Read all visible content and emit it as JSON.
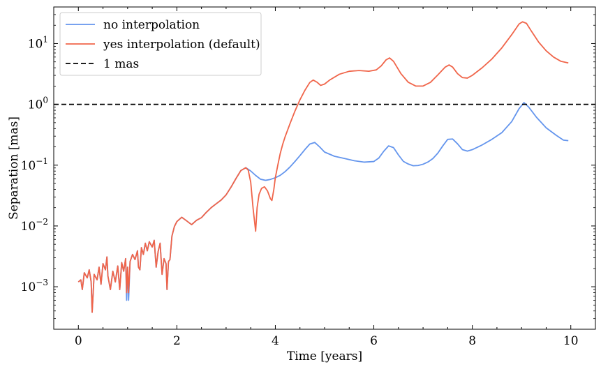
{
  "chart_data": {
    "type": "line",
    "title": "",
    "xlabel": "Time [years]",
    "ylabel": "Separation [mas]",
    "xlim": [
      -0.5,
      10.5
    ],
    "ylim": [
      0.0002,
      40
    ],
    "yscale": "log",
    "grid": false,
    "legend_position": "top-left",
    "x_ticks": [
      {
        "value": 0,
        "label": "0"
      },
      {
        "value": 2,
        "label": "2"
      },
      {
        "value": 4,
        "label": "4"
      },
      {
        "value": 6,
        "label": "6"
      },
      {
        "value": 8,
        "label": "8"
      },
      {
        "value": 10,
        "label": "10"
      }
    ],
    "y_ticks": [
      {
        "value": 0.001,
        "base": "10",
        "exp": "−3"
      },
      {
        "value": 0.01,
        "base": "10",
        "exp": "−2"
      },
      {
        "value": 0.1,
        "base": "10",
        "exp": "−1"
      },
      {
        "value": 1,
        "base": "10",
        "exp": "0"
      },
      {
        "value": 10,
        "base": "10",
        "exp": "1"
      }
    ],
    "series": [
      {
        "name": "no interpolation",
        "color": "#6495ED",
        "style": "solid",
        "points": [
          [
            0.0,
            0.0012
          ],
          [
            0.05,
            0.0013
          ],
          [
            0.08,
            0.0009
          ],
          [
            0.12,
            0.0017
          ],
          [
            0.18,
            0.0014
          ],
          [
            0.22,
            0.0019
          ],
          [
            0.26,
            0.0012
          ],
          [
            0.28,
            0.00038
          ],
          [
            0.32,
            0.0016
          ],
          [
            0.38,
            0.0013
          ],
          [
            0.42,
            0.0021
          ],
          [
            0.46,
            0.0011
          ],
          [
            0.5,
            0.0024
          ],
          [
            0.55,
            0.0019
          ],
          [
            0.58,
            0.0031
          ],
          [
            0.6,
            0.0015
          ],
          [
            0.65,
            0.0009
          ],
          [
            0.7,
            0.0018
          ],
          [
            0.75,
            0.0012
          ],
          [
            0.8,
            0.0022
          ],
          [
            0.84,
            0.0009
          ],
          [
            0.88,
            0.0025
          ],
          [
            0.92,
            0.0018
          ],
          [
            0.96,
            0.0029
          ],
          [
            0.98,
            0.0006
          ],
          [
            1.0,
            0.0021
          ],
          [
            1.02,
            0.0006
          ],
          [
            1.05,
            0.0026
          ],
          [
            1.1,
            0.0034
          ],
          [
            1.15,
            0.0028
          ],
          [
            1.2,
            0.0039
          ],
          [
            1.22,
            0.0021
          ],
          [
            1.25,
            0.0019
          ],
          [
            1.28,
            0.0044
          ],
          [
            1.32,
            0.0034
          ],
          [
            1.36,
            0.0052
          ],
          [
            1.4,
            0.0039
          ],
          [
            1.44,
            0.0055
          ],
          [
            1.5,
            0.0045
          ],
          [
            1.54,
            0.0058
          ],
          [
            1.58,
            0.0021
          ],
          [
            1.62,
            0.0038
          ],
          [
            1.66,
            0.0052
          ],
          [
            1.7,
            0.0016
          ],
          [
            1.74,
            0.0029
          ],
          [
            1.78,
            0.0024
          ],
          [
            1.8,
            0.0009
          ],
          [
            1.83,
            0.0026
          ],
          [
            1.86,
            0.0028
          ],
          [
            1.9,
            0.0068
          ],
          [
            1.95,
            0.0098
          ],
          [
            2.0,
            0.0118
          ],
          [
            2.1,
            0.0139
          ],
          [
            2.2,
            0.0121
          ],
          [
            2.3,
            0.0105
          ],
          [
            2.4,
            0.0124
          ],
          [
            2.5,
            0.0137
          ],
          [
            2.6,
            0.0168
          ],
          [
            2.7,
            0.0201
          ],
          [
            2.8,
            0.0232
          ],
          [
            2.9,
            0.0267
          ],
          [
            3.0,
            0.0325
          ],
          [
            3.1,
            0.0435
          ],
          [
            3.2,
            0.0602
          ],
          [
            3.3,
            0.0816
          ],
          [
            3.4,
            0.0908
          ],
          [
            3.5,
            0.0802
          ],
          [
            3.6,
            0.0678
          ],
          [
            3.7,
            0.0587
          ],
          [
            3.8,
            0.0563
          ],
          [
            3.9,
            0.0583
          ],
          [
            4.0,
            0.0621
          ],
          [
            4.1,
            0.0681
          ],
          [
            4.2,
            0.0785
          ],
          [
            4.3,
            0.0938
          ],
          [
            4.4,
            0.1154
          ],
          [
            4.5,
            0.1436
          ],
          [
            4.6,
            0.1807
          ],
          [
            4.7,
            0.2224
          ],
          [
            4.8,
            0.2364
          ],
          [
            4.9,
            0.1995
          ],
          [
            5.0,
            0.1642
          ],
          [
            5.2,
            0.1402
          ],
          [
            5.4,
            0.1291
          ],
          [
            5.6,
            0.1183
          ],
          [
            5.8,
            0.1122
          ],
          [
            6.0,
            0.1148
          ],
          [
            6.1,
            0.1306
          ],
          [
            6.2,
            0.1686
          ],
          [
            6.3,
            0.2075
          ],
          [
            6.4,
            0.1943
          ],
          [
            6.5,
            0.1472
          ],
          [
            6.6,
            0.1154
          ],
          [
            6.7,
            0.1044
          ],
          [
            6.8,
            0.0977
          ],
          [
            6.9,
            0.0988
          ],
          [
            7.0,
            0.1036
          ],
          [
            7.1,
            0.1128
          ],
          [
            7.2,
            0.1287
          ],
          [
            7.3,
            0.1579
          ],
          [
            7.4,
            0.2073
          ],
          [
            7.5,
            0.2657
          ],
          [
            7.6,
            0.2694
          ],
          [
            7.7,
            0.2245
          ],
          [
            7.8,
            0.1799
          ],
          [
            7.9,
            0.1702
          ],
          [
            8.0,
            0.1801
          ],
          [
            8.2,
            0.2152
          ],
          [
            8.4,
            0.2665
          ],
          [
            8.6,
            0.3432
          ],
          [
            8.8,
            0.5207
          ],
          [
            8.95,
            0.8505
          ],
          [
            9.05,
            1.0684
          ],
          [
            9.15,
            0.8932
          ],
          [
            9.3,
            0.6173
          ],
          [
            9.5,
            0.4116
          ],
          [
            9.7,
            0.3119
          ],
          [
            9.85,
            0.2584
          ],
          [
            9.95,
            0.2531
          ]
        ]
      },
      {
        "name": "yes interpolation (default)",
        "color": "#F0654A",
        "style": "solid",
        "points": [
          [
            0.0,
            0.0012
          ],
          [
            0.05,
            0.0013
          ],
          [
            0.08,
            0.0009
          ],
          [
            0.12,
            0.0017
          ],
          [
            0.18,
            0.0014
          ],
          [
            0.22,
            0.0019
          ],
          [
            0.26,
            0.0012
          ],
          [
            0.28,
            0.00038
          ],
          [
            0.32,
            0.0016
          ],
          [
            0.38,
            0.0013
          ],
          [
            0.42,
            0.0021
          ],
          [
            0.46,
            0.0011
          ],
          [
            0.5,
            0.0024
          ],
          [
            0.55,
            0.0019
          ],
          [
            0.58,
            0.0031
          ],
          [
            0.6,
            0.0015
          ],
          [
            0.65,
            0.0009
          ],
          [
            0.7,
            0.0018
          ],
          [
            0.75,
            0.0012
          ],
          [
            0.8,
            0.0022
          ],
          [
            0.84,
            0.0009
          ],
          [
            0.88,
            0.0025
          ],
          [
            0.92,
            0.0018
          ],
          [
            0.96,
            0.0029
          ],
          [
            0.98,
            0.0008
          ],
          [
            1.0,
            0.0021
          ],
          [
            1.02,
            0.0008
          ],
          [
            1.05,
            0.0026
          ],
          [
            1.1,
            0.0034
          ],
          [
            1.15,
            0.0028
          ],
          [
            1.2,
            0.0039
          ],
          [
            1.22,
            0.0021
          ],
          [
            1.25,
            0.0019
          ],
          [
            1.28,
            0.0044
          ],
          [
            1.32,
            0.0034
          ],
          [
            1.36,
            0.0052
          ],
          [
            1.4,
            0.0039
          ],
          [
            1.44,
            0.0055
          ],
          [
            1.5,
            0.0045
          ],
          [
            1.54,
            0.0058
          ],
          [
            1.58,
            0.0021
          ],
          [
            1.62,
            0.0038
          ],
          [
            1.66,
            0.0052
          ],
          [
            1.7,
            0.0016
          ],
          [
            1.74,
            0.0029
          ],
          [
            1.78,
            0.0024
          ],
          [
            1.8,
            0.0009
          ],
          [
            1.83,
            0.0026
          ],
          [
            1.86,
            0.0028
          ],
          [
            1.9,
            0.0068
          ],
          [
            1.95,
            0.0098
          ],
          [
            2.0,
            0.0118
          ],
          [
            2.1,
            0.0139
          ],
          [
            2.2,
            0.0121
          ],
          [
            2.3,
            0.0105
          ],
          [
            2.4,
            0.0124
          ],
          [
            2.5,
            0.0137
          ],
          [
            2.6,
            0.0168
          ],
          [
            2.7,
            0.0201
          ],
          [
            2.8,
            0.0232
          ],
          [
            2.9,
            0.0267
          ],
          [
            3.0,
            0.0325
          ],
          [
            3.1,
            0.0435
          ],
          [
            3.2,
            0.0602
          ],
          [
            3.3,
            0.0816
          ],
          [
            3.4,
            0.0908
          ],
          [
            3.45,
            0.0826
          ],
          [
            3.5,
            0.0524
          ],
          [
            3.55,
            0.0188
          ],
          [
            3.6,
            0.0082
          ],
          [
            3.63,
            0.0201
          ],
          [
            3.67,
            0.0332
          ],
          [
            3.72,
            0.0415
          ],
          [
            3.78,
            0.0441
          ],
          [
            3.84,
            0.0378
          ],
          [
            3.9,
            0.0281
          ],
          [
            3.93,
            0.0262
          ],
          [
            3.97,
            0.0402
          ],
          [
            4.0,
            0.0623
          ],
          [
            4.05,
            0.0999
          ],
          [
            4.1,
            0.1563
          ],
          [
            4.15,
            0.2209
          ],
          [
            4.2,
            0.2955
          ],
          [
            4.3,
            0.4876
          ],
          [
            4.4,
            0.7812
          ],
          [
            4.5,
            1.1896
          ],
          [
            4.6,
            1.7016
          ],
          [
            4.7,
            2.2942
          ],
          [
            4.77,
            2.5103
          ],
          [
            4.85,
            2.3045
          ],
          [
            4.92,
            2.0512
          ],
          [
            5.0,
            2.1581
          ],
          [
            5.1,
            2.5024
          ],
          [
            5.3,
            3.1302
          ],
          [
            5.5,
            3.5013
          ],
          [
            5.7,
            3.6007
          ],
          [
            5.9,
            3.5086
          ],
          [
            6.05,
            3.6915
          ],
          [
            6.15,
            4.3003
          ],
          [
            6.25,
            5.4059
          ],
          [
            6.32,
            5.8027
          ],
          [
            6.4,
            5.1035
          ],
          [
            6.55,
            3.2044
          ],
          [
            6.7,
            2.3064
          ],
          [
            6.85,
            2.0017
          ],
          [
            7.0,
            2.0024
          ],
          [
            7.15,
            2.3019
          ],
          [
            7.3,
            3.0511
          ],
          [
            7.45,
            4.1052
          ],
          [
            7.53,
            4.4531
          ],
          [
            7.6,
            4.1034
          ],
          [
            7.7,
            3.2012
          ],
          [
            7.8,
            2.7531
          ],
          [
            7.9,
            2.7057
          ],
          [
            8.0,
            3.0052
          ],
          [
            8.2,
            4.0038
          ],
          [
            8.4,
            5.6013
          ],
          [
            8.6,
            8.5062
          ],
          [
            8.8,
            14.0045
          ],
          [
            8.95,
            21.0066
          ],
          [
            9.02,
            22.8011
          ],
          [
            9.1,
            21.5039
          ],
          [
            9.2,
            16.0024
          ],
          [
            9.35,
            10.5082
          ],
          [
            9.5,
            7.6033
          ],
          [
            9.65,
            6.0015
          ],
          [
            9.8,
            5.1038
          ],
          [
            9.95,
            4.8015
          ]
        ]
      },
      {
        "name": "1 mas",
        "color": "#000000",
        "style": "dashed",
        "y_constant": 1
      }
    ]
  }
}
